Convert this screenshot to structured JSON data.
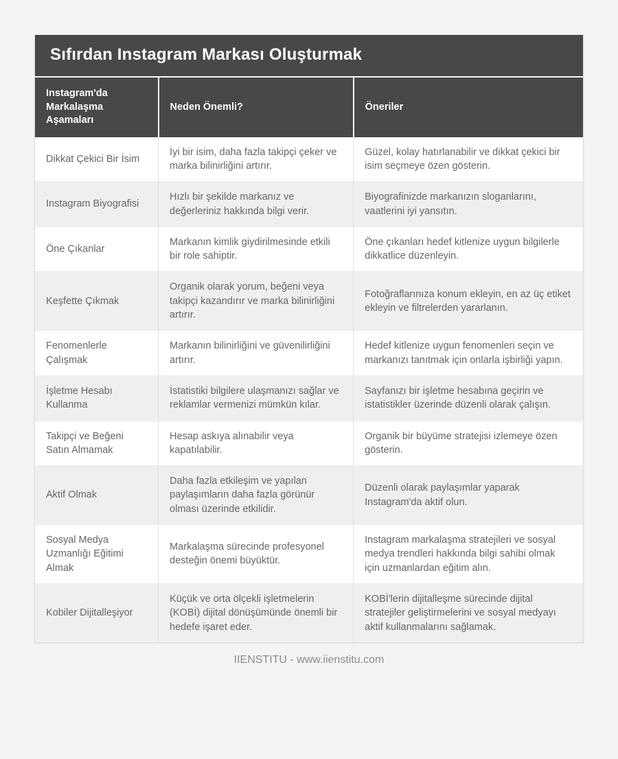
{
  "page": {
    "title": "Sıfırdan Instagram Markası Oluşturmak",
    "footer": "IIENSTITU - www.iienstitu.com"
  },
  "table": {
    "columns": [
      "Instagram'da Markalaşma Aşamaları",
      "Neden Önemli?",
      "Öneriler"
    ],
    "rows": [
      {
        "stage": "Dikkat Çekici Bir İsim",
        "why": "İyi bir isim, daha fazla takipçi çeker ve marka bilinirliğini artırır.",
        "suggestion": "Güzel, kolay hatırlanabilir ve dikkat çekici bir isim seçmeye özen gösterin."
      },
      {
        "stage": "Instagram Biyografisi",
        "why": "Hızlı bir şekilde markanız ve değerleriniz hakkında bilgi verir.",
        "suggestion": "Biyografinizde markanızın sloganlarını, vaatlerini iyi yansıtın."
      },
      {
        "stage": "Öne Çıkanlar",
        "why": "Markanın kimlik giydirilmesinde etkili bir role sahiptir.",
        "suggestion": "Öne çıkanları hedef kitlenize uygun bilgilerle dikkatlice düzenleyin."
      },
      {
        "stage": "Keşfette Çıkmak",
        "why": "Organik olarak yorum, beğeni veya takipçi kazandırır ve marka bilinirliğini artırır.",
        "suggestion": "Fotoğraflarınıza konum ekleyin, en az üç etiket ekleyin ve filtrelerden yararlanın."
      },
      {
        "stage": "Fenomenlerle Çalışmak",
        "why": "Markanın bilinirliğini ve güvenilirliğini artırır.",
        "suggestion": "Hedef kitlenize uygun fenomenleri seçin ve markanızı tanıtmak için onlarla işbirliği yapın."
      },
      {
        "stage": "İşletme Hesabı Kullanma",
        "why": "İstatistiki bilgilere ulaşmanızı sağlar ve reklamlar vermenizi mümkün kılar.",
        "suggestion": "Sayfanızı bir işletme hesabına geçirin ve istatistikler üzerinde düzenli olarak çalışın."
      },
      {
        "stage": "Takipçi ve Beğeni Satın Almamak",
        "why": "Hesap askıya alınabilir veya kapatılabilir.",
        "suggestion": "Organik bir büyüme stratejisi izlemeye özen gösterin."
      },
      {
        "stage": "Aktif Olmak",
        "why": "Daha fazla etkileşim ve yapılan paylaşımların daha fazla görünür olması üzerinde etkilidir.",
        "suggestion": "Düzenli olarak paylaşımlar yaparak Instagram'da aktif olun."
      },
      {
        "stage": "Sosyal Medya Uzmanlığı Eğitimi Almak",
        "why": "Markalaşma sürecinde profesyonel desteğin önemi büyüktür.",
        "suggestion": "Instagram markalaşma stratejileri ve sosyal medya trendleri hakkında bilgi sahibi olmak için uzmanlardan eğitim alın."
      },
      {
        "stage": "Kobiler Dijitalleşiyor",
        "why": "Küçük ve orta ölçekli işletmelerin (KOBİ) dijital dönüşümünde önemli bir hedefe işaret eder.",
        "suggestion": "KOBİ'lerin dijitalleşme sürecinde dijital stratejiler geliştirmelerini ve sosyal medyayı aktif kullanmalarını sağlamak."
      }
    ]
  },
  "colors": {
    "page_bg": "#f4f4f5",
    "header_bg": "#484848",
    "header_text": "#ffffff",
    "row_alt_bg": "#efefef",
    "body_text": "#666666",
    "footer_text": "#8b8b8b"
  }
}
